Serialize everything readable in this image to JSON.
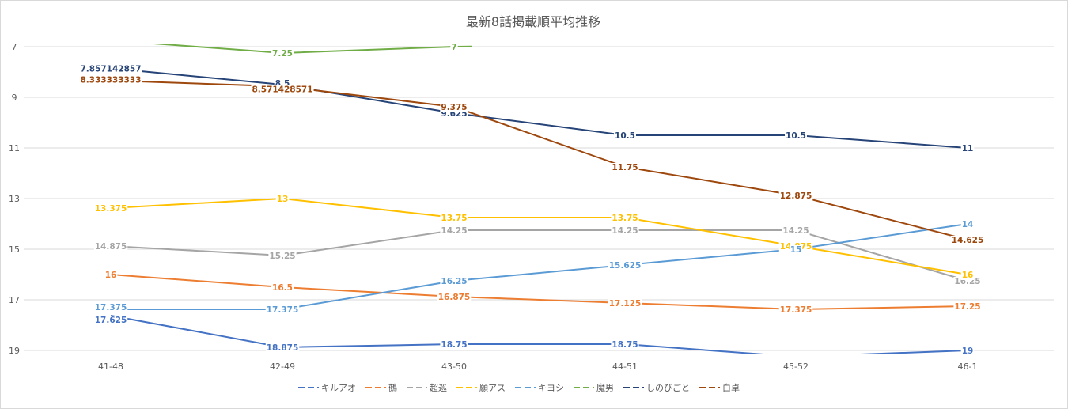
{
  "chart_data": {
    "type": "line",
    "title": "最新8話掲載順平均推移",
    "categories": [
      "41-48",
      "42-49",
      "43-50",
      "44-51",
      "45-52",
      "46-1"
    ],
    "ylim": [
      19,
      7
    ],
    "y_reversed": true,
    "yticks": [
      "7",
      "9",
      "11",
      "13",
      "15",
      "17",
      "19"
    ],
    "grid": true,
    "legend_position": "bottom",
    "series": [
      {
        "name": "キルアオ",
        "color": "#4472C4",
        "values": [
          17.625,
          18.875,
          18.75,
          18.75,
          19.25,
          19
        ],
        "labels": [
          "17.625",
          "18.875",
          "18.75",
          "18.75",
          "",
          "19"
        ]
      },
      {
        "name": "鵺",
        "color": "#ED7D31",
        "values": [
          16,
          16.5,
          16.875,
          17.125,
          17.375,
          17.25
        ],
        "labels": [
          "16",
          "16.5",
          "16.875",
          "17.125",
          "17.375",
          "17.25"
        ]
      },
      {
        "name": "超巡",
        "color": "#A5A5A5",
        "values": [
          14.875,
          15.25,
          14.25,
          14.25,
          14.25,
          16.25
        ],
        "labels": [
          "14.875",
          "15.25",
          "14.25",
          "14.25",
          "14.25",
          "16.25"
        ]
      },
      {
        "name": "願アス",
        "color": "#FFC000",
        "values": [
          13.375,
          13,
          13.75,
          13.75,
          14.875,
          16
        ],
        "labels": [
          "13.375",
          "13",
          "13.75",
          "13.75",
          "14.875",
          "16"
        ]
      },
      {
        "name": "キヨシ",
        "color": "#5B9BD5",
        "values": [
          17.375,
          17.375,
          16.25,
          15.625,
          15,
          14
        ],
        "labels": [
          "17.375",
          "17.375",
          "16.25",
          "15.625",
          "15",
          "14"
        ]
      },
      {
        "name": "魔男",
        "color": "#70AD47",
        "values": [
          6.75,
          7.25,
          7,
          null,
          null,
          null
        ],
        "labels": [
          "",
          "7.25",
          "7",
          "",
          "",
          ""
        ]
      },
      {
        "name": "しのびごと",
        "color": "#264478",
        "values": [
          7.857142857,
          8.5,
          9.625,
          10.5,
          10.5,
          11
        ],
        "labels": [
          "7.857142857",
          "8.5",
          "9.625",
          "10.5",
          "10.5",
          "11"
        ]
      },
      {
        "name": "白卓",
        "color": "#9E480E",
        "values": [
          8.333333333,
          8.571428571,
          9.375,
          11.75,
          12.875,
          14.625
        ],
        "labels": [
          "8.333333333",
          "8.571428571",
          "9.375",
          "11.75",
          "12.875",
          "14.625"
        ]
      }
    ]
  }
}
